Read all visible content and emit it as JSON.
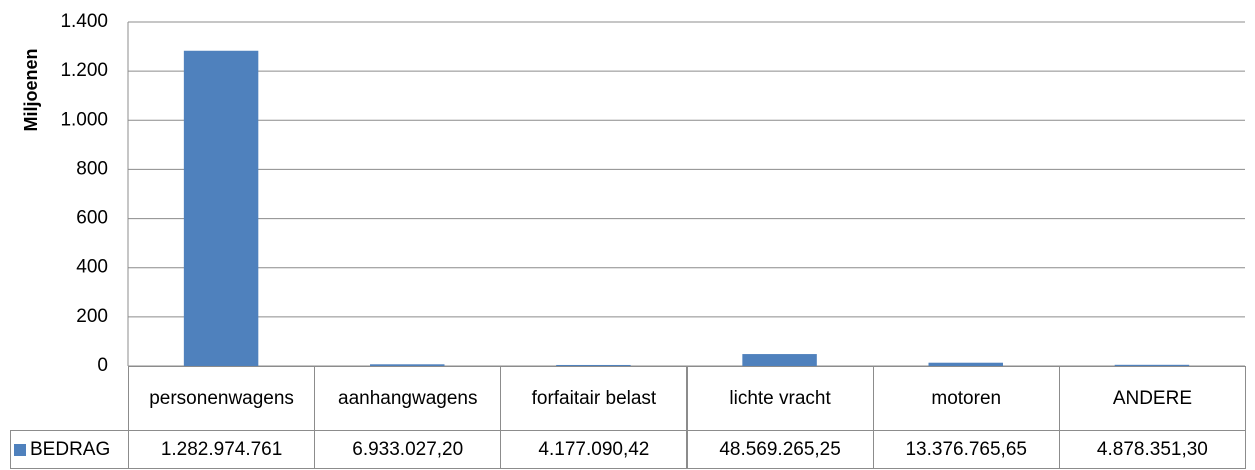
{
  "chart_data": {
    "type": "bar",
    "y_label": "Miljoenen",
    "categories": [
      "personenwagens",
      "aanhangwagens",
      "forfaitair belast",
      "lichte vracht",
      "motoren",
      "ANDERE"
    ],
    "series": [
      {
        "name": "BEDRAG",
        "color": "#4f81bd",
        "values": [
          1282.974761,
          6.9330272,
          4.17709042,
          48.56926525,
          13.37676565,
          4.8783513
        ],
        "value_labels": [
          "1.282.974.761",
          "6.933.027,20",
          "4.177.090,42",
          "48.569.265,25",
          "13.376.765,65",
          "4.878.351,30"
        ]
      }
    ],
    "ylim": [
      0,
      1400
    ],
    "yticks": [
      0,
      200,
      400,
      600,
      800,
      {
        "value": 1000,
        "label": "1.000"
      },
      {
        "value": 1200,
        "label": "1.200"
      },
      {
        "value": 1400,
        "label": "1.400"
      }
    ],
    "grid": true
  }
}
